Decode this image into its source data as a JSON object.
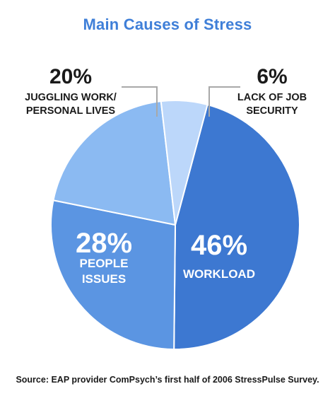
{
  "chart_data": {
    "type": "pie",
    "title": "Main Causes of Stress",
    "slices": [
      {
        "label": "WORKLOAD",
        "lines": [
          "WORKLOAD"
        ],
        "percent_text": "46%",
        "value": 46,
        "color": "#3d78d1"
      },
      {
        "label": "PEOPLE ISSUES",
        "lines": [
          "PEOPLE",
          "ISSUES"
        ],
        "percent_text": "28%",
        "value": 28,
        "color": "#5b95e2"
      },
      {
        "label": "JUGGLING WORK/ PERSONAL LIVES",
        "lines": [
          "JUGGLING WORK/",
          "PERSONAL LIVES"
        ],
        "percent_text": "20%",
        "value": 20,
        "color": "#8bbaf2"
      },
      {
        "label": "LACK OF JOB SECURITY",
        "lines": [
          "LACK OF JOB",
          "SECURITY"
        ],
        "percent_text": "6%",
        "value": 6,
        "color": "#bcd7fa"
      }
    ],
    "source": "Source: EAP provider ComPsych’s first half of 2006 StressPulse Survey."
  }
}
